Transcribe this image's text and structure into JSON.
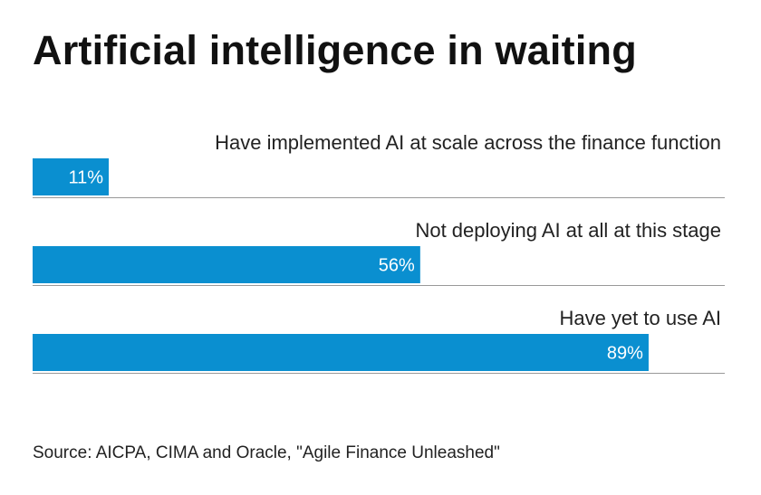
{
  "title": "Artificial intelligence in waiting",
  "source": "Source: AICPA, CIMA and Oracle, \"Agile Finance Unleashed\"",
  "colors": {
    "bar": "#0a8fd0",
    "bar_label": "#ffffff",
    "divider": "#999999",
    "text": "#222222"
  },
  "chart_data": {
    "type": "bar",
    "orientation": "horizontal",
    "categories": [
      "Have implemented AI at scale across the finance function",
      "Not deploying AI at all at this stage",
      "Have yet to use AI"
    ],
    "values": [
      11,
      56,
      89
    ],
    "value_labels": [
      "11%",
      "56%",
      "89%"
    ],
    "unit": "%",
    "xlim": [
      0,
      100
    ],
    "grid": false
  }
}
